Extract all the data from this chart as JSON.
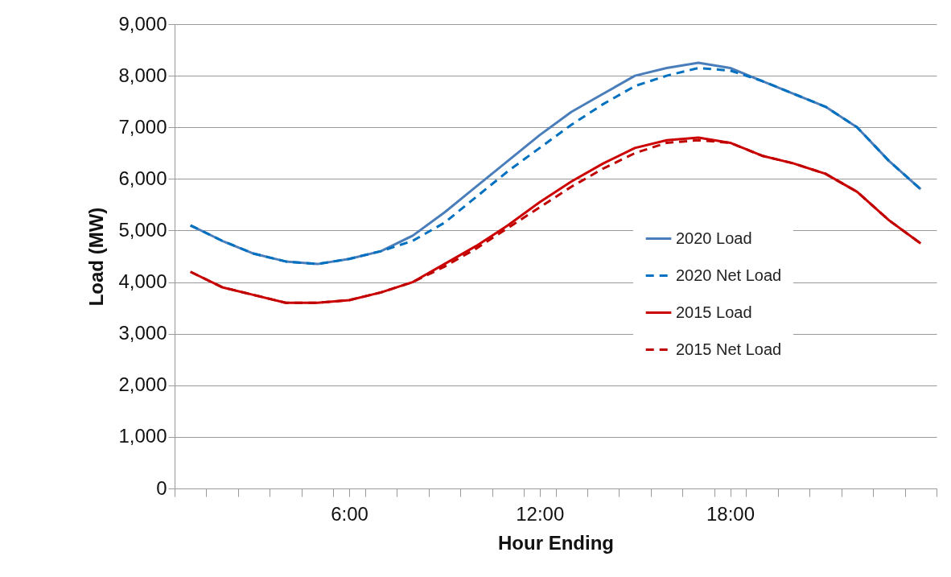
{
  "chart_data": {
    "type": "line",
    "xlabel": "Hour Ending",
    "ylabel": "Load (MW)",
    "x": [
      1,
      2,
      3,
      4,
      5,
      6,
      7,
      8,
      9,
      10,
      11,
      12,
      13,
      14,
      15,
      16,
      17,
      18,
      19,
      20,
      21,
      22,
      23,
      24
    ],
    "xlim": [
      0.5,
      24.5
    ],
    "xticks": [
      {
        "value": 0.5,
        "label": null
      },
      {
        "value": 1.5,
        "label": null
      },
      {
        "value": 2.5,
        "label": null
      },
      {
        "value": 3.5,
        "label": null
      },
      {
        "value": 4.5,
        "label": null
      },
      {
        "value": 5.5,
        "label": null
      },
      {
        "value": 6,
        "label": "6:00"
      },
      {
        "value": 6.5,
        "label": null
      },
      {
        "value": 7.5,
        "label": null
      },
      {
        "value": 8.5,
        "label": null
      },
      {
        "value": 9.5,
        "label": null
      },
      {
        "value": 10.5,
        "label": null
      },
      {
        "value": 11.5,
        "label": null
      },
      {
        "value": 12,
        "label": "12:00"
      },
      {
        "value": 12.5,
        "label": null
      },
      {
        "value": 13.5,
        "label": null
      },
      {
        "value": 14.5,
        "label": null
      },
      {
        "value": 15.5,
        "label": null
      },
      {
        "value": 16.5,
        "label": null
      },
      {
        "value": 17.5,
        "label": null
      },
      {
        "value": 18,
        "label": "18:00"
      },
      {
        "value": 18.5,
        "label": null
      },
      {
        "value": 19.5,
        "label": null
      },
      {
        "value": 20.5,
        "label": null
      },
      {
        "value": 21.5,
        "label": null
      },
      {
        "value": 22.5,
        "label": null
      },
      {
        "value": 23.5,
        "label": null
      },
      {
        "value": 24.5,
        "label": null
      }
    ],
    "ylim": [
      0,
      9000
    ],
    "yticks": [
      {
        "value": 0,
        "label": "0"
      },
      {
        "value": 1000,
        "label": "1,000"
      },
      {
        "value": 2000,
        "label": "2,000"
      },
      {
        "value": 3000,
        "label": "3,000"
      },
      {
        "value": 4000,
        "label": "4,000"
      },
      {
        "value": 5000,
        "label": "5,000"
      },
      {
        "value": 6000,
        "label": "6,000"
      },
      {
        "value": 7000,
        "label": "7,000"
      },
      {
        "value": 8000,
        "label": "8,000"
      },
      {
        "value": 9000,
        "label": "9,000"
      }
    ],
    "grid": "y",
    "legend": "right",
    "series": [
      {
        "name": "2020 Load",
        "color": "#4a7ebb",
        "line_style": "solid",
        "values": [
          5100,
          4800,
          4550,
          4400,
          4350,
          4450,
          4600,
          4900,
          5350,
          5850,
          6350,
          6850,
          7300,
          7650,
          8000,
          8150,
          8250,
          8150,
          7900,
          7650,
          7400,
          7000,
          6350,
          5800
        ]
      },
      {
        "name": "2020 Net Load",
        "color": "#0070c0",
        "line_style": "dashed",
        "values": [
          5100,
          4800,
          4550,
          4400,
          4350,
          4450,
          4600,
          4800,
          5150,
          5650,
          6150,
          6600,
          7050,
          7450,
          7800,
          8000,
          8150,
          8100,
          7900,
          7650,
          7400,
          7000,
          6350,
          5800
        ]
      },
      {
        "name": "2015 Load",
        "color": "#cc0000",
        "line_style": "solid",
        "values": [
          4200,
          3900,
          3750,
          3600,
          3600,
          3650,
          3800,
          4000,
          4350,
          4700,
          5100,
          5550,
          5950,
          6300,
          6600,
          6750,
          6800,
          6700,
          6450,
          6300,
          6100,
          5750,
          5200,
          4750
        ]
      },
      {
        "name": "2015 Net Load",
        "color": "#c00000",
        "line_style": "dashed",
        "values": [
          4200,
          3900,
          3750,
          3600,
          3600,
          3650,
          3800,
          4000,
          4300,
          4650,
          5050,
          5450,
          5850,
          6200,
          6500,
          6700,
          6750,
          6700,
          6450,
          6300,
          6100,
          5750,
          5200,
          4750
        ]
      }
    ]
  }
}
